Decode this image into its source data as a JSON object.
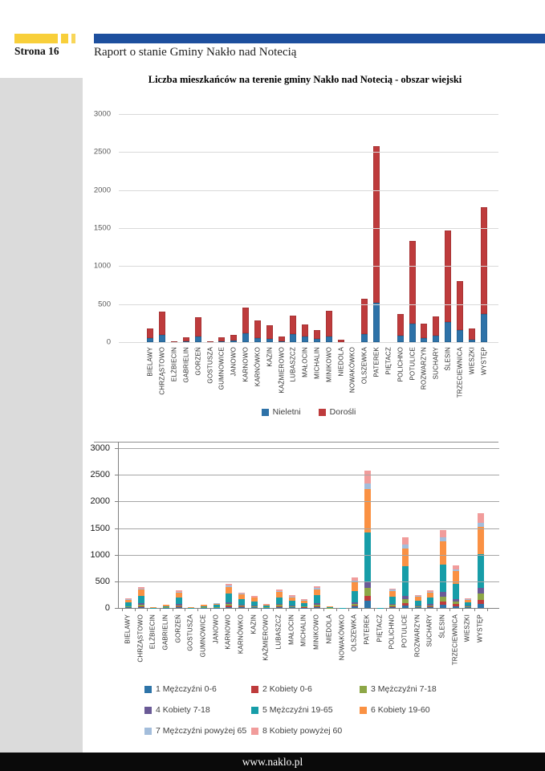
{
  "page": {
    "page_label": "Strona 16",
    "header_title": "Raport o stanie Gminy Nakło nad Notecią",
    "footer_url": "www.naklo.pl"
  },
  "chart_data": [
    {
      "type": "bar",
      "stacked": true,
      "title": "Liczba mieszkańców na terenie gminy Nakło nad Notecią - obszar wiejski",
      "xlabel": "",
      "ylabel": "",
      "ylim": [
        0,
        3000
      ],
      "yticks": [
        0,
        500,
        1000,
        1500,
        2000,
        2500,
        3000
      ],
      "grid": true,
      "legend_position": "bottom",
      "categories": [
        "BIELAWY",
        "CHRZĄSTOWO",
        "ELŻBIECIN",
        "GABRIELIN",
        "GORZEŃ",
        "GOSTUSZA",
        "GUMNOWICE",
        "JANOWO",
        "KARNOWO",
        "KARNÓWKO",
        "KAZIN",
        "KAŹMIEROWO",
        "LUBASZCZ",
        "MAŁOCIN",
        "MICHALIN",
        "MINIKOWO",
        "NIEDOLA",
        "NOWAKÓWKO",
        "OLSZEWKA",
        "PATEREK",
        "PIĘTACZ",
        "POLICHNO",
        "POTULICE",
        "ROZWARZYN",
        "SUCHARY",
        "ŚLESIN",
        "TRZECIEWNICA",
        "WIESZKI",
        "WYSTĘP"
      ],
      "series": [
        {
          "name": "Nieletni",
          "color": "#2e72a8",
          "values": [
            55,
            90,
            2,
            10,
            75,
            2,
            10,
            20,
            115,
            55,
            45,
            15,
            105,
            70,
            40,
            75,
            5,
            1,
            110,
            520,
            1,
            80,
            245,
            55,
            85,
            265,
            160,
            35,
            370
          ]
        },
        {
          "name": "Dorośli",
          "color": "#be3b3c",
          "values": [
            125,
            310,
            8,
            55,
            255,
            8,
            55,
            75,
            340,
            235,
            175,
            55,
            245,
            165,
            120,
            335,
            25,
            4,
            465,
            2060,
            4,
            290,
            1085,
            185,
            250,
            1205,
            645,
            140,
            1405
          ]
        }
      ]
    },
    {
      "type": "bar",
      "stacked": true,
      "title": "",
      "xlabel": "",
      "ylabel": "",
      "ylim": [
        0,
        3000
      ],
      "yticks": [
        0,
        500,
        1000,
        1500,
        2000,
        2500,
        3000
      ],
      "grid": true,
      "legend_position": "bottom",
      "categories": [
        "BIELAWY",
        "CHRZĄSTOWO",
        "ELŻBIECIN",
        "GABRIELIN",
        "GORZEŃ",
        "GOSTUSZA",
        "GUMNOWICE",
        "JANOWO",
        "KARNOWO",
        "KARNÓWKO",
        "KAZIN",
        "KAŹMIEROWO",
        "LUBASZCZ",
        "MAŁOCIN",
        "MICHALIN",
        "MINIKOWO",
        "NIEDOLA",
        "NOWAKÓWKO",
        "OLSZEWKA",
        "PATEREK",
        "PIĘTACZ",
        "POLICHNO",
        "POTULICE",
        "ROZWARZYN",
        "SUCHARY",
        "ŚLESIN",
        "TRZECIEWNICA",
        "WIESZKI",
        "WYSTĘP"
      ],
      "series": [
        {
          "name": "1 Mężczyźni 0-6",
          "color": "#2e74a8",
          "values": [
            8,
            18,
            0,
            3,
            15,
            0,
            3,
            4,
            20,
            13,
            10,
            3,
            16,
            11,
            7,
            18,
            1,
            0,
            26,
            140,
            0,
            17,
            50,
            11,
            15,
            65,
            36,
            8,
            80
          ]
        },
        {
          "name": "2 Kobiety 0-6",
          "color": "#be3b3c",
          "values": [
            8,
            17,
            0,
            3,
            14,
            0,
            3,
            4,
            19,
            12,
            9,
            3,
            15,
            10,
            7,
            17,
            1,
            0,
            24,
            90,
            0,
            16,
            45,
            10,
            14,
            62,
            34,
            8,
            75
          ]
        },
        {
          "name": "3 Mężczyźni 7-18",
          "color": "#8da747",
          "values": [
            12,
            28,
            1,
            4,
            22,
            1,
            4,
            6,
            32,
            19,
            14,
            5,
            24,
            15,
            11,
            28,
            2,
            0,
            32,
            140,
            0,
            25,
            70,
            16,
            22,
            90,
            48,
            12,
            115
          ]
        },
        {
          "name": "4 Kobiety 7-18",
          "color": "#6a5a96",
          "values": [
            10,
            25,
            1,
            4,
            20,
            1,
            4,
            6,
            29,
            17,
            13,
            4,
            22,
            14,
            10,
            26,
            2,
            0,
            30,
            135,
            0,
            23,
            65,
            14,
            20,
            85,
            45,
            11,
            105
          ]
        },
        {
          "name": "5 Mężczyźni 19-65",
          "color": "#179da8",
          "values": [
            65,
            145,
            4,
            24,
            120,
            4,
            24,
            34,
            165,
            105,
            80,
            25,
            126,
            85,
            58,
            148,
            11,
            2,
            205,
            920,
            2,
            133,
            560,
            87,
            121,
            520,
            290,
            63,
            630
          ]
        },
        {
          "name": "6 Kobiety 19-60",
          "color": "#fa9143",
          "values": [
            52,
            115,
            3,
            19,
            96,
            3,
            19,
            28,
            130,
            85,
            64,
            20,
            101,
            68,
            46,
            118,
            9,
            2,
            170,
            810,
            2,
            107,
            330,
            70,
            97,
            430,
            235,
            50,
            520
          ]
        },
        {
          "name": "7 Mężczyźni powyżej 65",
          "color": "#a3bddb",
          "values": [
            10,
            22,
            0,
            3,
            18,
            0,
            3,
            5,
            25,
            16,
            12,
            4,
            19,
            13,
            9,
            23,
            1,
            0,
            28,
            100,
            0,
            20,
            75,
            13,
            19,
            78,
            42,
            9,
            80
          ]
        },
        {
          "name": "8 Kobiety powyżej 60",
          "color": "#f19c9b",
          "values": [
            15,
            30,
            1,
            5,
            25,
            1,
            5,
            8,
            35,
            23,
            18,
            6,
            27,
            19,
            12,
            32,
            3,
            1,
            60,
            245,
            1,
            29,
            135,
            19,
            27,
            140,
            75,
            14,
            170
          ]
        }
      ]
    }
  ]
}
